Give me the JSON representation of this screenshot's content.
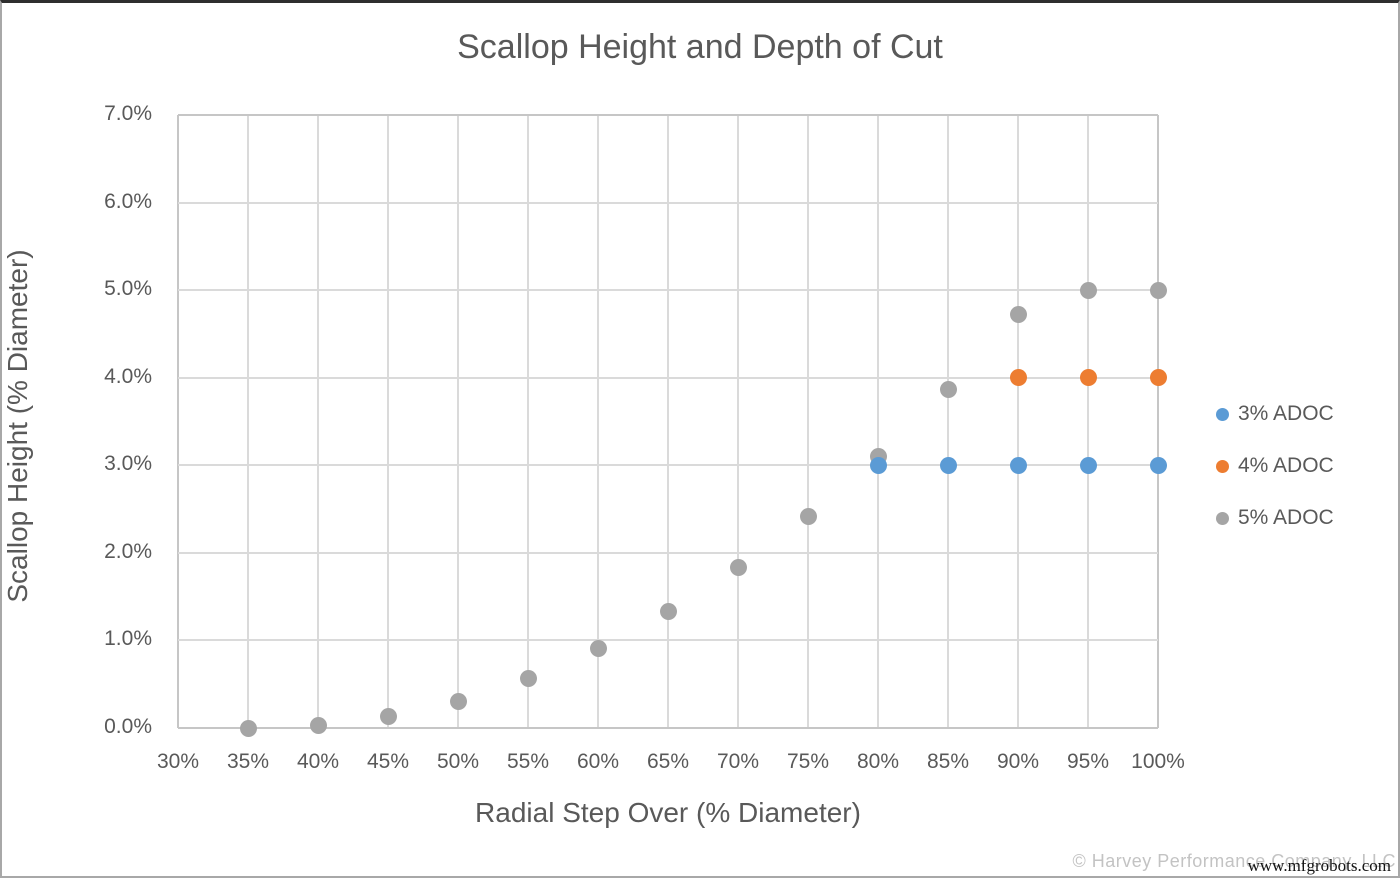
{
  "window": {
    "background": "#ffffff",
    "border_color": "#a8a8a8"
  },
  "chart_data": {
    "type": "scatter",
    "title": "Scallop Height and Depth of Cut",
    "xlabel": "Radial Step Over (% Diameter)",
    "ylabel": "Scallop Height (% Diameter)",
    "xlim": [
      30,
      100
    ],
    "ylim": [
      0,
      7
    ],
    "grid": true,
    "legend_position": "right",
    "x_ticks": [
      "30%",
      "35%",
      "40%",
      "45%",
      "50%",
      "55%",
      "60%",
      "65%",
      "70%",
      "75%",
      "80%",
      "85%",
      "90%",
      "95%",
      "100%"
    ],
    "y_ticks": [
      "0.0%",
      "1.0%",
      "2.0%",
      "3.0%",
      "4.0%",
      "5.0%",
      "6.0%",
      "7.0%"
    ],
    "series": [
      {
        "name": "3% ADOC",
        "color": "#5B9BD5",
        "points": [
          [
            80,
            3.0
          ],
          [
            85,
            3.0
          ],
          [
            90,
            3.0
          ],
          [
            95,
            3.0
          ],
          [
            100,
            3.0
          ]
        ]
      },
      {
        "name": "4% ADOC",
        "color": "#ED7D31",
        "points": [
          [
            90,
            4.0
          ],
          [
            95,
            4.0
          ],
          [
            100,
            4.0
          ]
        ]
      },
      {
        "name": "5% ADOC",
        "color": "#A5A5A5",
        "points": [
          [
            35,
            0.0
          ],
          [
            40,
            0.03
          ],
          [
            45,
            0.13
          ],
          [
            50,
            0.3
          ],
          [
            55,
            0.56
          ],
          [
            60,
            0.91
          ],
          [
            65,
            1.33
          ],
          [
            70,
            1.83
          ],
          [
            75,
            2.42
          ],
          [
            80,
            3.1
          ],
          [
            85,
            3.86
          ],
          [
            90,
            4.72
          ],
          [
            95,
            5.0
          ],
          [
            100,
            5.0
          ]
        ]
      }
    ]
  },
  "watermark": {
    "copyright": "© Harvey Performance Company, LLC",
    "site": "www.mfgrobots.com"
  },
  "colors": {
    "text": "#595959",
    "gridline": "#DADADA",
    "plot_border": "#C6C6C6"
  }
}
